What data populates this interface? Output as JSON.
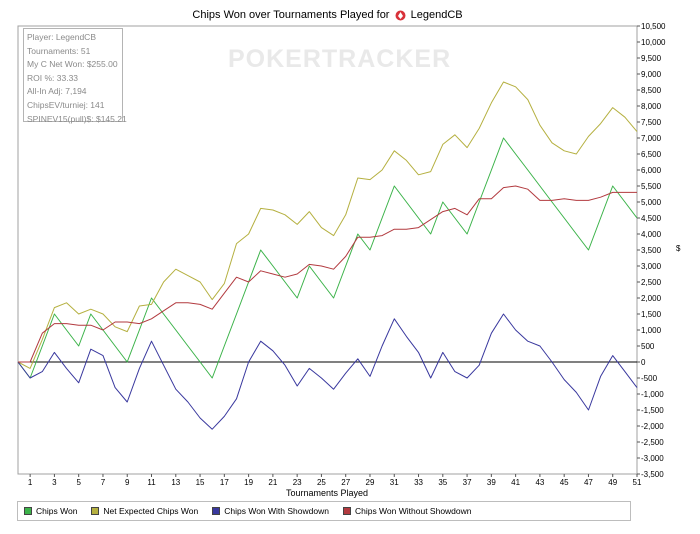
{
  "title": {
    "prefix": "Chips Won over Tournaments Played for",
    "player": "LegendCB"
  },
  "watermark": "POKERTRACKER",
  "info_box": [
    "Player: LegendCB",
    "Tournaments: 51",
    "My C Net Won: $255.00",
    "ROI %: 33.33",
    "All-In Adj: 7,194",
    "ChipsEV/turniej: 141",
    "SPINEV15(pull)$: $145.21"
  ],
  "right_axis_symbol": "$",
  "chart_data": {
    "type": "line",
    "title": "Chips Won over Tournaments Played for LegendCB",
    "xlabel": "Tournaments Played",
    "ylabel": "",
    "xlim": [
      0,
      51
    ],
    "ylim": [
      -3500,
      10500
    ],
    "x_ticks": [
      1,
      3,
      5,
      7,
      9,
      11,
      13,
      15,
      17,
      19,
      21,
      23,
      25,
      27,
      29,
      31,
      33,
      35,
      37,
      39,
      41,
      43,
      45,
      47,
      49,
      51
    ],
    "y_ticks": [
      -3500,
      -3000,
      -2500,
      -2000,
      -1500,
      -1000,
      -500,
      0,
      500,
      1000,
      1500,
      2000,
      2500,
      3000,
      3500,
      4000,
      4500,
      5000,
      5500,
      6000,
      6500,
      7000,
      7500,
      8000,
      8500,
      9000,
      9500,
      10000,
      10500
    ],
    "y_tick_labels": [
      "-3,500",
      "-3,000",
      "-2,500",
      "-2,000",
      "-1,500",
      "-1,000",
      "-500",
      "0",
      "500",
      "1,000",
      "1,500",
      "2,000",
      "2,500",
      "3,000",
      "3,500",
      "4,000",
      "4,500",
      "5,000",
      "5,500",
      "6,000",
      "6,500",
      "7,000",
      "7,500",
      "8,000",
      "8,500",
      "9,000",
      "9,500",
      "10,000",
      "10,500"
    ],
    "grid": false,
    "legend_position": "bottom",
    "x": [
      0,
      1,
      2,
      3,
      4,
      5,
      6,
      7,
      8,
      9,
      10,
      11,
      12,
      13,
      14,
      15,
      16,
      17,
      18,
      19,
      20,
      21,
      22,
      23,
      24,
      25,
      26,
      27,
      28,
      29,
      30,
      31,
      32,
      33,
      34,
      35,
      36,
      37,
      38,
      39,
      40,
      41,
      42,
      43,
      44,
      45,
      46,
      47,
      48,
      49,
      50,
      51
    ],
    "series": [
      {
        "name": "Chips Won",
        "color": "#3cb34a",
        "values": [
          0,
          -500,
          500,
          1500,
          1000,
          500,
          1500,
          1000,
          500,
          0,
          1000,
          2000,
          1500,
          1000,
          500,
          0,
          -500,
          500,
          1500,
          2500,
          3500,
          3000,
          2500,
          2000,
          3000,
          2500,
          2000,
          3000,
          4000,
          3500,
          4500,
          5500,
          5000,
          4500,
          4000,
          5000,
          4500,
          4000,
          5000,
          6000,
          7000,
          6500,
          6000,
          5500,
          5000,
          4500,
          4000,
          3500,
          4500,
          5500,
          5000,
          4500
        ]
      },
      {
        "name": "Net Expected Chips Won",
        "color": "#b5b040",
        "values": [
          0,
          -200,
          700,
          1700,
          1850,
          1500,
          1650,
          1500,
          1100,
          950,
          1750,
          1800,
          2500,
          2900,
          2700,
          2500,
          1950,
          2450,
          3700,
          4000,
          4800,
          4750,
          4600,
          4300,
          4700,
          4200,
          3950,
          4600,
          5750,
          5700,
          6000,
          6600,
          6300,
          5850,
          5950,
          6800,
          7100,
          6700,
          7300,
          8100,
          8750,
          8600,
          8200,
          7400,
          6850,
          6600,
          6500,
          7050,
          7450,
          7950,
          7650,
          7200
        ]
      },
      {
        "name": "Chips Won With Showdown",
        "color": "#39389e",
        "values": [
          0,
          -500,
          -300,
          300,
          -200,
          -650,
          400,
          200,
          -800,
          -1250,
          -200,
          650,
          -100,
          -850,
          -1250,
          -1750,
          -2100,
          -1700,
          -1150,
          0,
          650,
          350,
          -100,
          -750,
          -200,
          -500,
          -850,
          -350,
          100,
          -450,
          500,
          1350,
          800,
          300,
          -500,
          300,
          -300,
          -500,
          -100,
          900,
          1500,
          1000,
          650,
          500,
          0,
          -550,
          -950,
          -1500,
          -450,
          200,
          -300,
          -800
        ]
      },
      {
        "name": "Chips Won Without Showdown",
        "color": "#b23a3f",
        "values": [
          0,
          0,
          900,
          1200,
          1200,
          1150,
          1150,
          1000,
          1250,
          1250,
          1200,
          1350,
          1600,
          1850,
          1850,
          1800,
          1650,
          2150,
          2650,
          2500,
          2850,
          2750,
          2650,
          2750,
          3050,
          3000,
          2900,
          3300,
          3900,
          3900,
          3950,
          4150,
          4150,
          4200,
          4450,
          4700,
          4800,
          4600,
          5100,
          5100,
          5450,
          5500,
          5400,
          5050,
          5050,
          5100,
          5050,
          5050,
          5150,
          5300,
          5300,
          5300
        ]
      }
    ]
  }
}
